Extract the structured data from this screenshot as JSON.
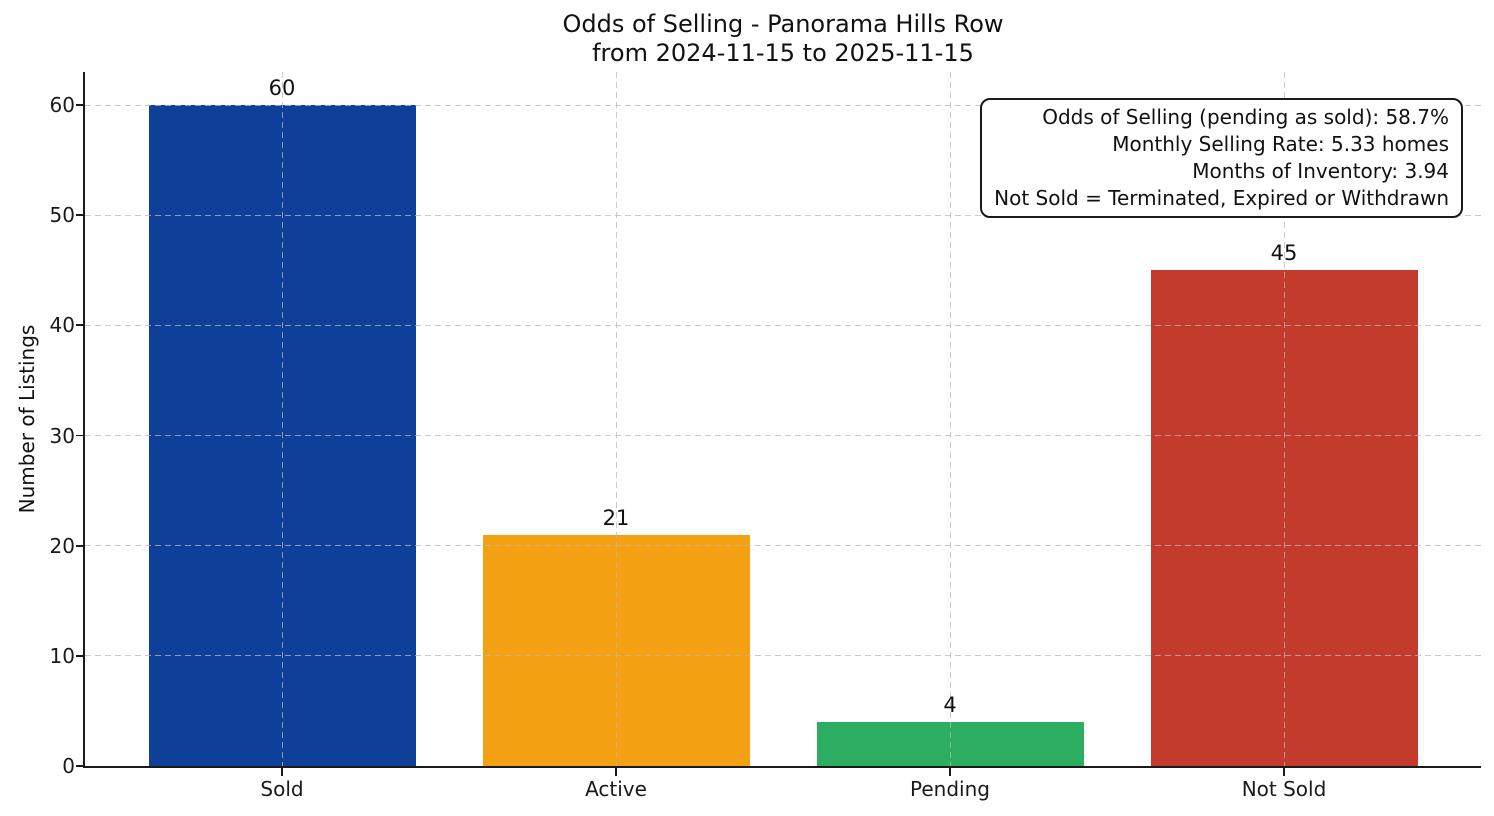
{
  "title": {
    "line1": "Odds of Selling - Panorama Hills Row",
    "line2": "from 2024-11-15 to 2025-11-15"
  },
  "annotation": {
    "lines": [
      "Odds of Selling (pending as sold): 58.7%",
      "Monthly Selling Rate: 5.33 homes",
      "Months of Inventory: 3.94",
      "Not Sold = Terminated, Expired or Withdrawn"
    ]
  },
  "chart_data": {
    "type": "bar",
    "title": "Odds of Selling - Panorama Hills Row\nfrom 2024-11-15 to 2025-11-15",
    "categories": [
      "Sold",
      "Active",
      "Pending",
      "Not Sold"
    ],
    "values": [
      60,
      21,
      4,
      45
    ],
    "bar_colors": [
      "#0e3f99",
      "#f4a013",
      "#2bae60",
      "#c23b2c"
    ],
    "xlabel": "",
    "ylabel": "Number of Listings",
    "ylim": [
      0,
      63
    ],
    "yticks": [
      0,
      10,
      20,
      30,
      40,
      50,
      60
    ],
    "grid": true,
    "grid_style": "dashed",
    "legend": "none",
    "annotations": [
      "Odds of Selling (pending as sold): 58.7%",
      "Monthly Selling Rate: 5.33 homes",
      "Months of Inventory: 3.94",
      "Not Sold = Terminated, Expired or Withdrawn"
    ]
  },
  "colors": {
    "background": "#ffffff",
    "axis": "#1a1a1a",
    "grid": "#b9b9b9",
    "text": "#111111"
  }
}
